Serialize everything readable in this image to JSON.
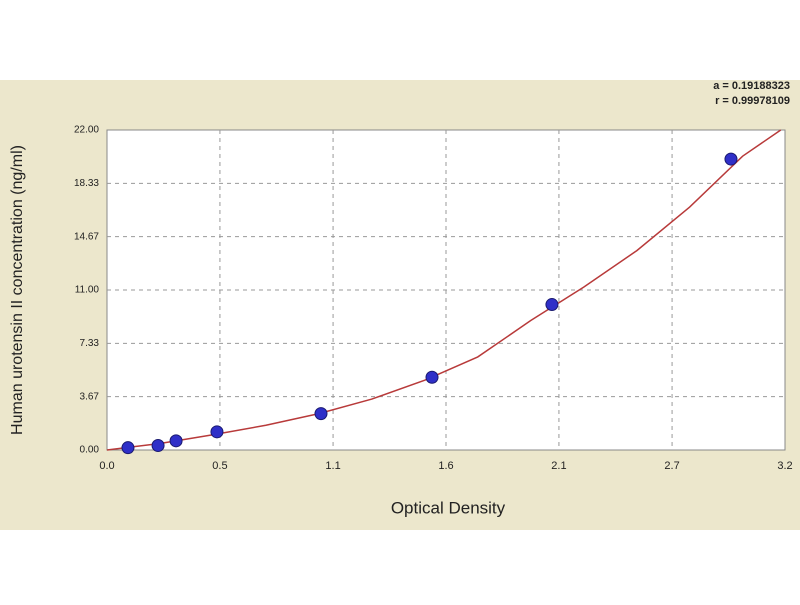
{
  "chart_data": {
    "type": "scatter",
    "x_label": "Optical Density",
    "y_label": "Human urotensin II concentration (ng/ml)",
    "annotations": [
      "a = 0.19188323",
      "r = 0.99978109"
    ],
    "xlim": [
      0,
      3.2
    ],
    "ylim": [
      0,
      22
    ],
    "xticks": [
      {
        "value": 0,
        "label": "0.0"
      },
      {
        "value": 0.533,
        "label": "0.5"
      },
      {
        "value": 1.067,
        "label": "1.1"
      },
      1.6,
      {
        "value": 2.133,
        "label": "2.1"
      },
      {
        "value": 2.667,
        "label": "2.7"
      },
      3.2
    ],
    "yticks": [
      {
        "value": 0,
        "label": "0.00"
      },
      {
        "value": 3.667,
        "label": "3.67"
      },
      {
        "value": 7.333,
        "label": "7.33"
      },
      {
        "value": 11,
        "label": "11.00"
      },
      {
        "value": 14.667,
        "label": "14.67"
      },
      {
        "value": 18.333,
        "label": "18.33"
      },
      {
        "value": 22,
        "label": "22.00"
      }
    ],
    "grid": true,
    "series": [
      {
        "color": "#2f2fc8",
        "x": [
          0.099,
          0.241,
          0.326,
          0.519,
          1.01,
          1.534,
          2.1,
          2.945
        ],
        "values": [
          0.16,
          0.31,
          0.63,
          1.25,
          2.5,
          5,
          10,
          20
        ]
      },
      {
        "color": "#b83a3a",
        "x": [
          0,
          0.25,
          0.5,
          0.75,
          1.0,
          1.25,
          1.5,
          1.75,
          2.0,
          2.25,
          2.5,
          2.75,
          3.0,
          3.18
        ],
        "values": [
          0,
          0.45,
          1.05,
          1.7,
          2.5,
          3.5,
          4.8,
          6.4,
          8.9,
          11.2,
          13.7,
          16.7,
          20.2,
          22.0
        ]
      }
    ]
  }
}
